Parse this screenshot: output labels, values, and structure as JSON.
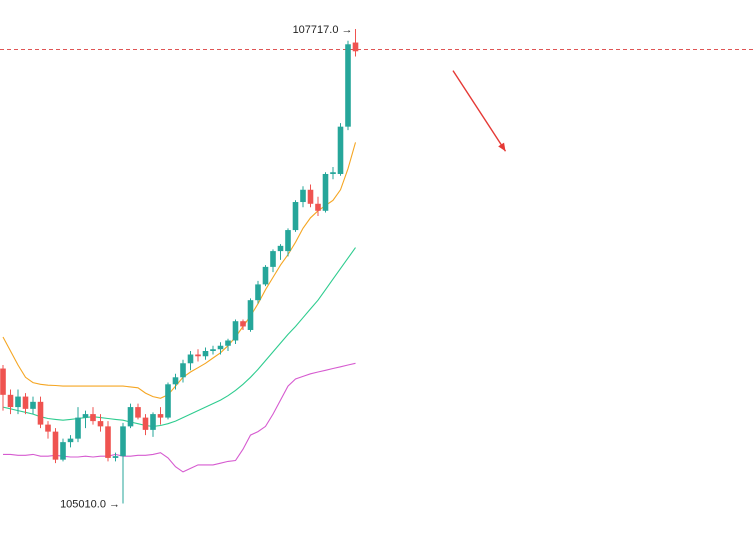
{
  "colors": {
    "up": "#26a69a",
    "down": "#ef5350",
    "ma_fast": "#f5a623",
    "ma_mid": "#2ecc8f",
    "ma_slow": "#d65bd0",
    "reference_line": "#e05555",
    "arrow": "#e53935",
    "label_text": "#222222"
  },
  "chart_data": {
    "type": "candlestick",
    "title": "",
    "xlabel": "",
    "ylabel": "",
    "ylim": [
      104950,
      107780
    ],
    "high_label": "107717.0 →",
    "low_label": "105010.0 →",
    "high_value": 107717.0,
    "low_value": 105010.0,
    "reference_level": 107600,
    "arrow_from": {
      "x": 60,
      "y": 107480
    },
    "arrow_to": {
      "x": 67,
      "y": 107020
    },
    "candles": [
      {
        "x": 0,
        "o": 105780,
        "h": 105800,
        "l": 105540,
        "c": 105630
      },
      {
        "x": 1,
        "o": 105630,
        "h": 105660,
        "l": 105520,
        "c": 105560
      },
      {
        "x": 2,
        "o": 105560,
        "h": 105660,
        "l": 105520,
        "c": 105620
      },
      {
        "x": 3,
        "o": 105620,
        "h": 105640,
        "l": 105520,
        "c": 105550
      },
      {
        "x": 4,
        "o": 105550,
        "h": 105620,
        "l": 105520,
        "c": 105590
      },
      {
        "x": 5,
        "o": 105590,
        "h": 105620,
        "l": 105440,
        "c": 105460
      },
      {
        "x": 6,
        "o": 105460,
        "h": 105480,
        "l": 105380,
        "c": 105420
      },
      {
        "x": 7,
        "o": 105420,
        "h": 105440,
        "l": 105240,
        "c": 105260
      },
      {
        "x": 8,
        "o": 105260,
        "h": 105380,
        "l": 105250,
        "c": 105360
      },
      {
        "x": 9,
        "o": 105360,
        "h": 105400,
        "l": 105330,
        "c": 105380
      },
      {
        "x": 10,
        "o": 105380,
        "h": 105560,
        "l": 105360,
        "c": 105500
      },
      {
        "x": 11,
        "o": 105500,
        "h": 105540,
        "l": 105440,
        "c": 105520
      },
      {
        "x": 12,
        "o": 105520,
        "h": 105560,
        "l": 105460,
        "c": 105480
      },
      {
        "x": 13,
        "o": 105480,
        "h": 105520,
        "l": 105420,
        "c": 105450
      },
      {
        "x": 14,
        "o": 105450,
        "h": 105480,
        "l": 105250,
        "c": 105270
      },
      {
        "x": 15,
        "o": 105270,
        "h": 105300,
        "l": 105250,
        "c": 105280
      },
      {
        "x": 16,
        "o": 105280,
        "h": 105470,
        "l": 105010,
        "c": 105450
      },
      {
        "x": 17,
        "o": 105450,
        "h": 105580,
        "l": 105440,
        "c": 105560
      },
      {
        "x": 18,
        "o": 105560,
        "h": 105580,
        "l": 105490,
        "c": 105500
      },
      {
        "x": 19,
        "o": 105500,
        "h": 105520,
        "l": 105400,
        "c": 105430
      },
      {
        "x": 20,
        "o": 105430,
        "h": 105530,
        "l": 105390,
        "c": 105520
      },
      {
        "x": 21,
        "o": 105520,
        "h": 105560,
        "l": 105460,
        "c": 105500
      },
      {
        "x": 22,
        "o": 105500,
        "h": 105700,
        "l": 105490,
        "c": 105690
      },
      {
        "x": 23,
        "o": 105690,
        "h": 105750,
        "l": 105660,
        "c": 105730
      },
      {
        "x": 24,
        "o": 105730,
        "h": 105830,
        "l": 105700,
        "c": 105810
      },
      {
        "x": 25,
        "o": 105810,
        "h": 105880,
        "l": 105770,
        "c": 105860
      },
      {
        "x": 26,
        "o": 105860,
        "h": 105890,
        "l": 105820,
        "c": 105850
      },
      {
        "x": 27,
        "o": 105850,
        "h": 105900,
        "l": 105830,
        "c": 105880
      },
      {
        "x": 28,
        "o": 105880,
        "h": 105910,
        "l": 105860,
        "c": 105890
      },
      {
        "x": 29,
        "o": 105890,
        "h": 105930,
        "l": 105860,
        "c": 105910
      },
      {
        "x": 30,
        "o": 105910,
        "h": 105950,
        "l": 105880,
        "c": 105940
      },
      {
        "x": 31,
        "o": 105940,
        "h": 106060,
        "l": 105920,
        "c": 106050
      },
      {
        "x": 32,
        "o": 106050,
        "h": 106060,
        "l": 106000,
        "c": 106020
      },
      {
        "x": 33,
        "o": 106000,
        "h": 106180,
        "l": 105990,
        "c": 106170
      },
      {
        "x": 34,
        "o": 106170,
        "h": 106280,
        "l": 106150,
        "c": 106260
      },
      {
        "x": 35,
        "o": 106260,
        "h": 106370,
        "l": 106250,
        "c": 106360
      },
      {
        "x": 36,
        "o": 106360,
        "h": 106460,
        "l": 106330,
        "c": 106450
      },
      {
        "x": 37,
        "o": 106450,
        "h": 106490,
        "l": 106400,
        "c": 106480
      },
      {
        "x": 38,
        "o": 106450,
        "h": 106580,
        "l": 106420,
        "c": 106570
      },
      {
        "x": 39,
        "o": 106570,
        "h": 106740,
        "l": 106560,
        "c": 106730
      },
      {
        "x": 40,
        "o": 106730,
        "h": 106820,
        "l": 106700,
        "c": 106800
      },
      {
        "x": 41,
        "o": 106800,
        "h": 106830,
        "l": 106700,
        "c": 106720
      },
      {
        "x": 42,
        "o": 106720,
        "h": 106760,
        "l": 106650,
        "c": 106680
      },
      {
        "x": 43,
        "o": 106680,
        "h": 106900,
        "l": 106670,
        "c": 106890
      },
      {
        "x": 44,
        "o": 106890,
        "h": 106930,
        "l": 106860,
        "c": 106900
      },
      {
        "x": 45,
        "o": 106890,
        "h": 107180,
        "l": 106880,
        "c": 107160
      },
      {
        "x": 46,
        "o": 107160,
        "h": 107650,
        "l": 107140,
        "c": 107630
      },
      {
        "x": 47,
        "o": 107640,
        "h": 107717,
        "l": 107560,
        "c": 107590
      }
    ],
    "ma_fast": [
      105960,
      105880,
      105800,
      105730,
      105700,
      105690,
      105685,
      105683,
      105680,
      105680,
      105680,
      105680,
      105680,
      105680,
      105680,
      105680,
      105680,
      105675,
      105670,
      105640,
      105620,
      105610,
      105630,
      105680,
      105730,
      105760,
      105785,
      105810,
      105840,
      105870,
      105910,
      105960,
      106020,
      106080,
      106150,
      106230,
      106300,
      106370,
      106430,
      106500,
      106580,
      106640,
      106680,
      106710,
      106740,
      106800,
      106920,
      107070
    ],
    "ma_mid": [
      105560,
      105550,
      105540,
      105530,
      105520,
      105505,
      105495,
      105490,
      105485,
      105490,
      105495,
      105500,
      105505,
      105500,
      105495,
      105490,
      105485,
      105475,
      105465,
      105455,
      105450,
      105455,
      105465,
      105480,
      105500,
      105520,
      105540,
      105560,
      105580,
      105600,
      105625,
      105655,
      105690,
      105730,
      105775,
      105825,
      105875,
      105925,
      105975,
      106020,
      106070,
      106120,
      106170,
      106230,
      106290,
      106350,
      106410,
      106470
    ],
    "ma_slow": [
      105290,
      105290,
      105285,
      105285,
      105290,
      105280,
      105280,
      105285,
      105280,
      105275,
      105275,
      105280,
      105275,
      105280,
      105280,
      105290,
      105280,
      105280,
      105285,
      105285,
      105290,
      105300,
      105270,
      105220,
      105190,
      105210,
      105230,
      105230,
      105230,
      105240,
      105250,
      105255,
      105320,
      105400,
      105420,
      105450,
      105520,
      105600,
      105680,
      105720,
      105735,
      105750,
      105760,
      105770,
      105780,
      105790,
      105800,
      105810
    ]
  }
}
